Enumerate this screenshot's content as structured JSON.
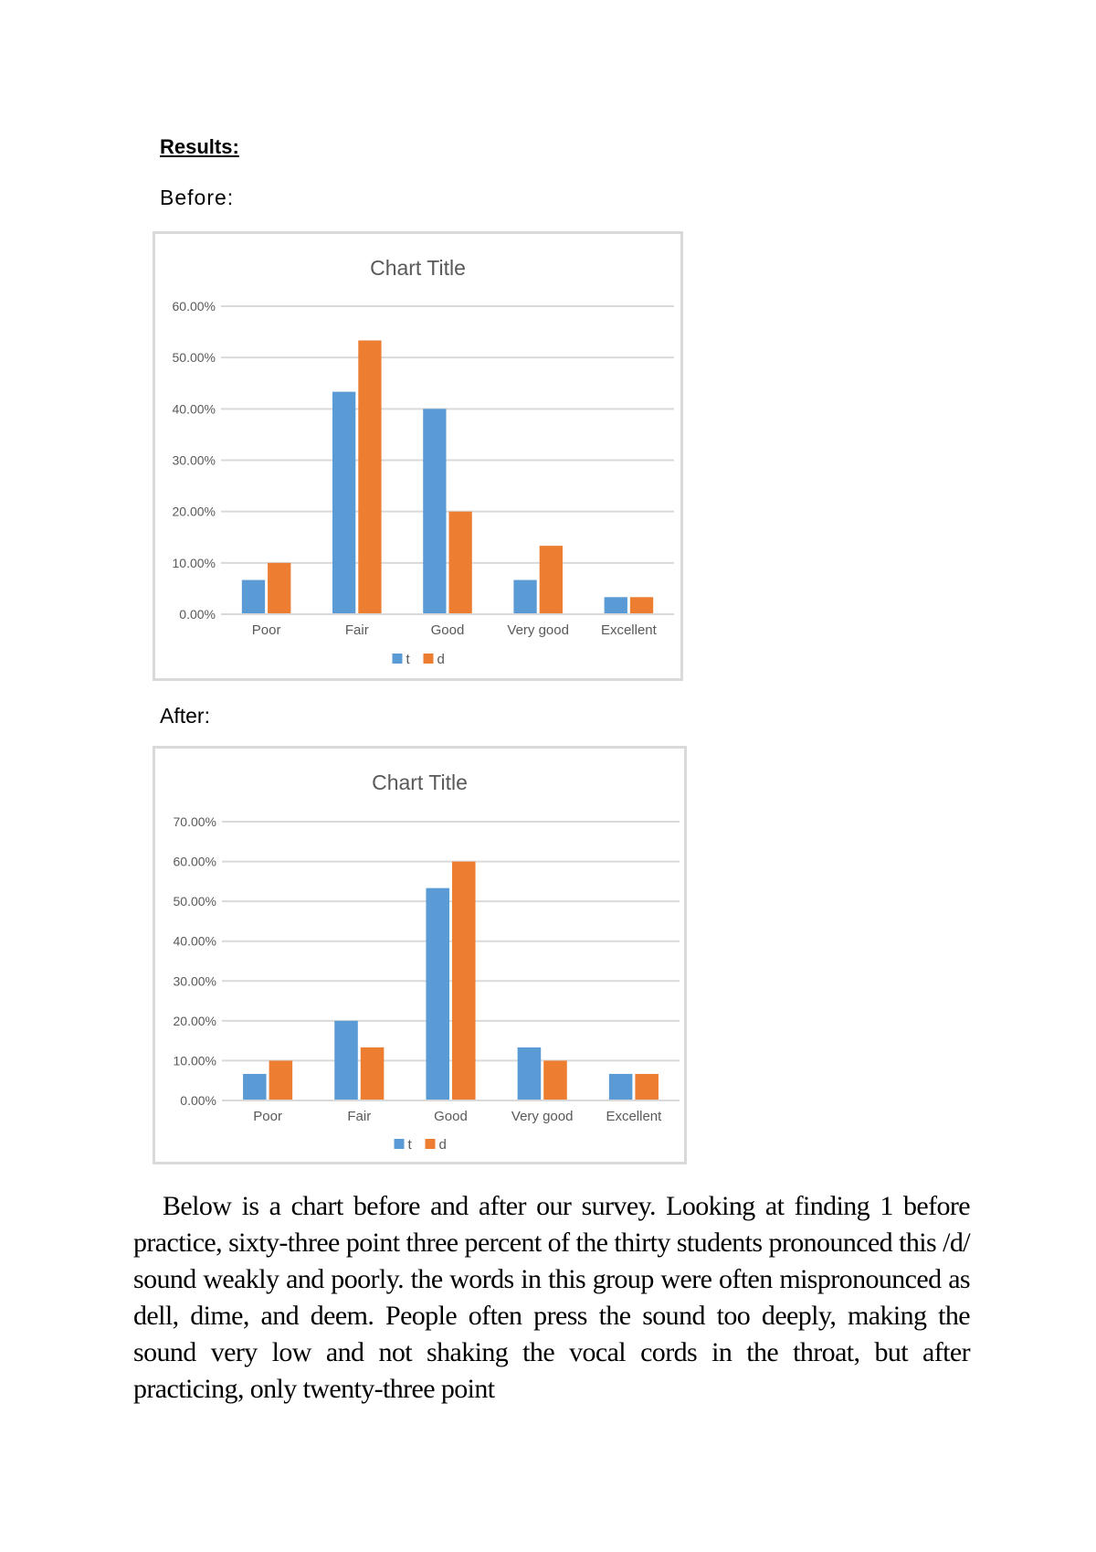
{
  "document": {
    "heading": "Results:",
    "before_label": "Before:",
    "after_label": "After:",
    "paragraph": "Below is a chart before and after our survey. Looking at finding 1 before practice, sixty-three point three percent of the thirty students pronounced this /d/ sound weakly and poorly. the words in this group were often mispronounced as dell, dime, and deem. People often press the sound too deeply, making the sound very low and not shaking the vocal cords in the throat, but after practicing, only twenty-three point"
  },
  "colors": {
    "t": "#5b9bd5",
    "d": "#ed7d31",
    "grid": "#d9d9d9",
    "text": "#595959"
  },
  "chart_data": [
    {
      "id": "before",
      "type": "bar",
      "title": "Chart Title",
      "xlabel": "",
      "ylabel": "",
      "categories": [
        "Poor",
        "Fair",
        "Good",
        "Very good",
        "Excellent"
      ],
      "series": [
        {
          "name": "t",
          "values": [
            6.67,
            43.33,
            40.0,
            6.67,
            3.33
          ]
        },
        {
          "name": "d",
          "values": [
            10.0,
            53.33,
            20.0,
            13.33,
            3.33
          ]
        }
      ],
      "ylim": [
        0,
        60
      ],
      "yticks": [
        "0.00%",
        "10.00%",
        "20.00%",
        "30.00%",
        "40.00%",
        "50.00%",
        "60.00%"
      ],
      "grid": true,
      "legend_position": "bottom"
    },
    {
      "id": "after",
      "type": "bar",
      "title": "Chart Title",
      "xlabel": "",
      "ylabel": "",
      "categories": [
        "Poor",
        "Fair",
        "Good",
        "Very good",
        "Excellent"
      ],
      "series": [
        {
          "name": "t",
          "values": [
            6.67,
            20.0,
            53.33,
            13.33,
            6.67
          ]
        },
        {
          "name": "d",
          "values": [
            10.0,
            13.33,
            60.0,
            10.0,
            6.67
          ]
        }
      ],
      "ylim": [
        0,
        70
      ],
      "yticks": [
        "0.00%",
        "10.00%",
        "20.00%",
        "30.00%",
        "40.00%",
        "50.00%",
        "60.00%",
        "70.00%"
      ],
      "grid": true,
      "legend_position": "bottom"
    }
  ]
}
